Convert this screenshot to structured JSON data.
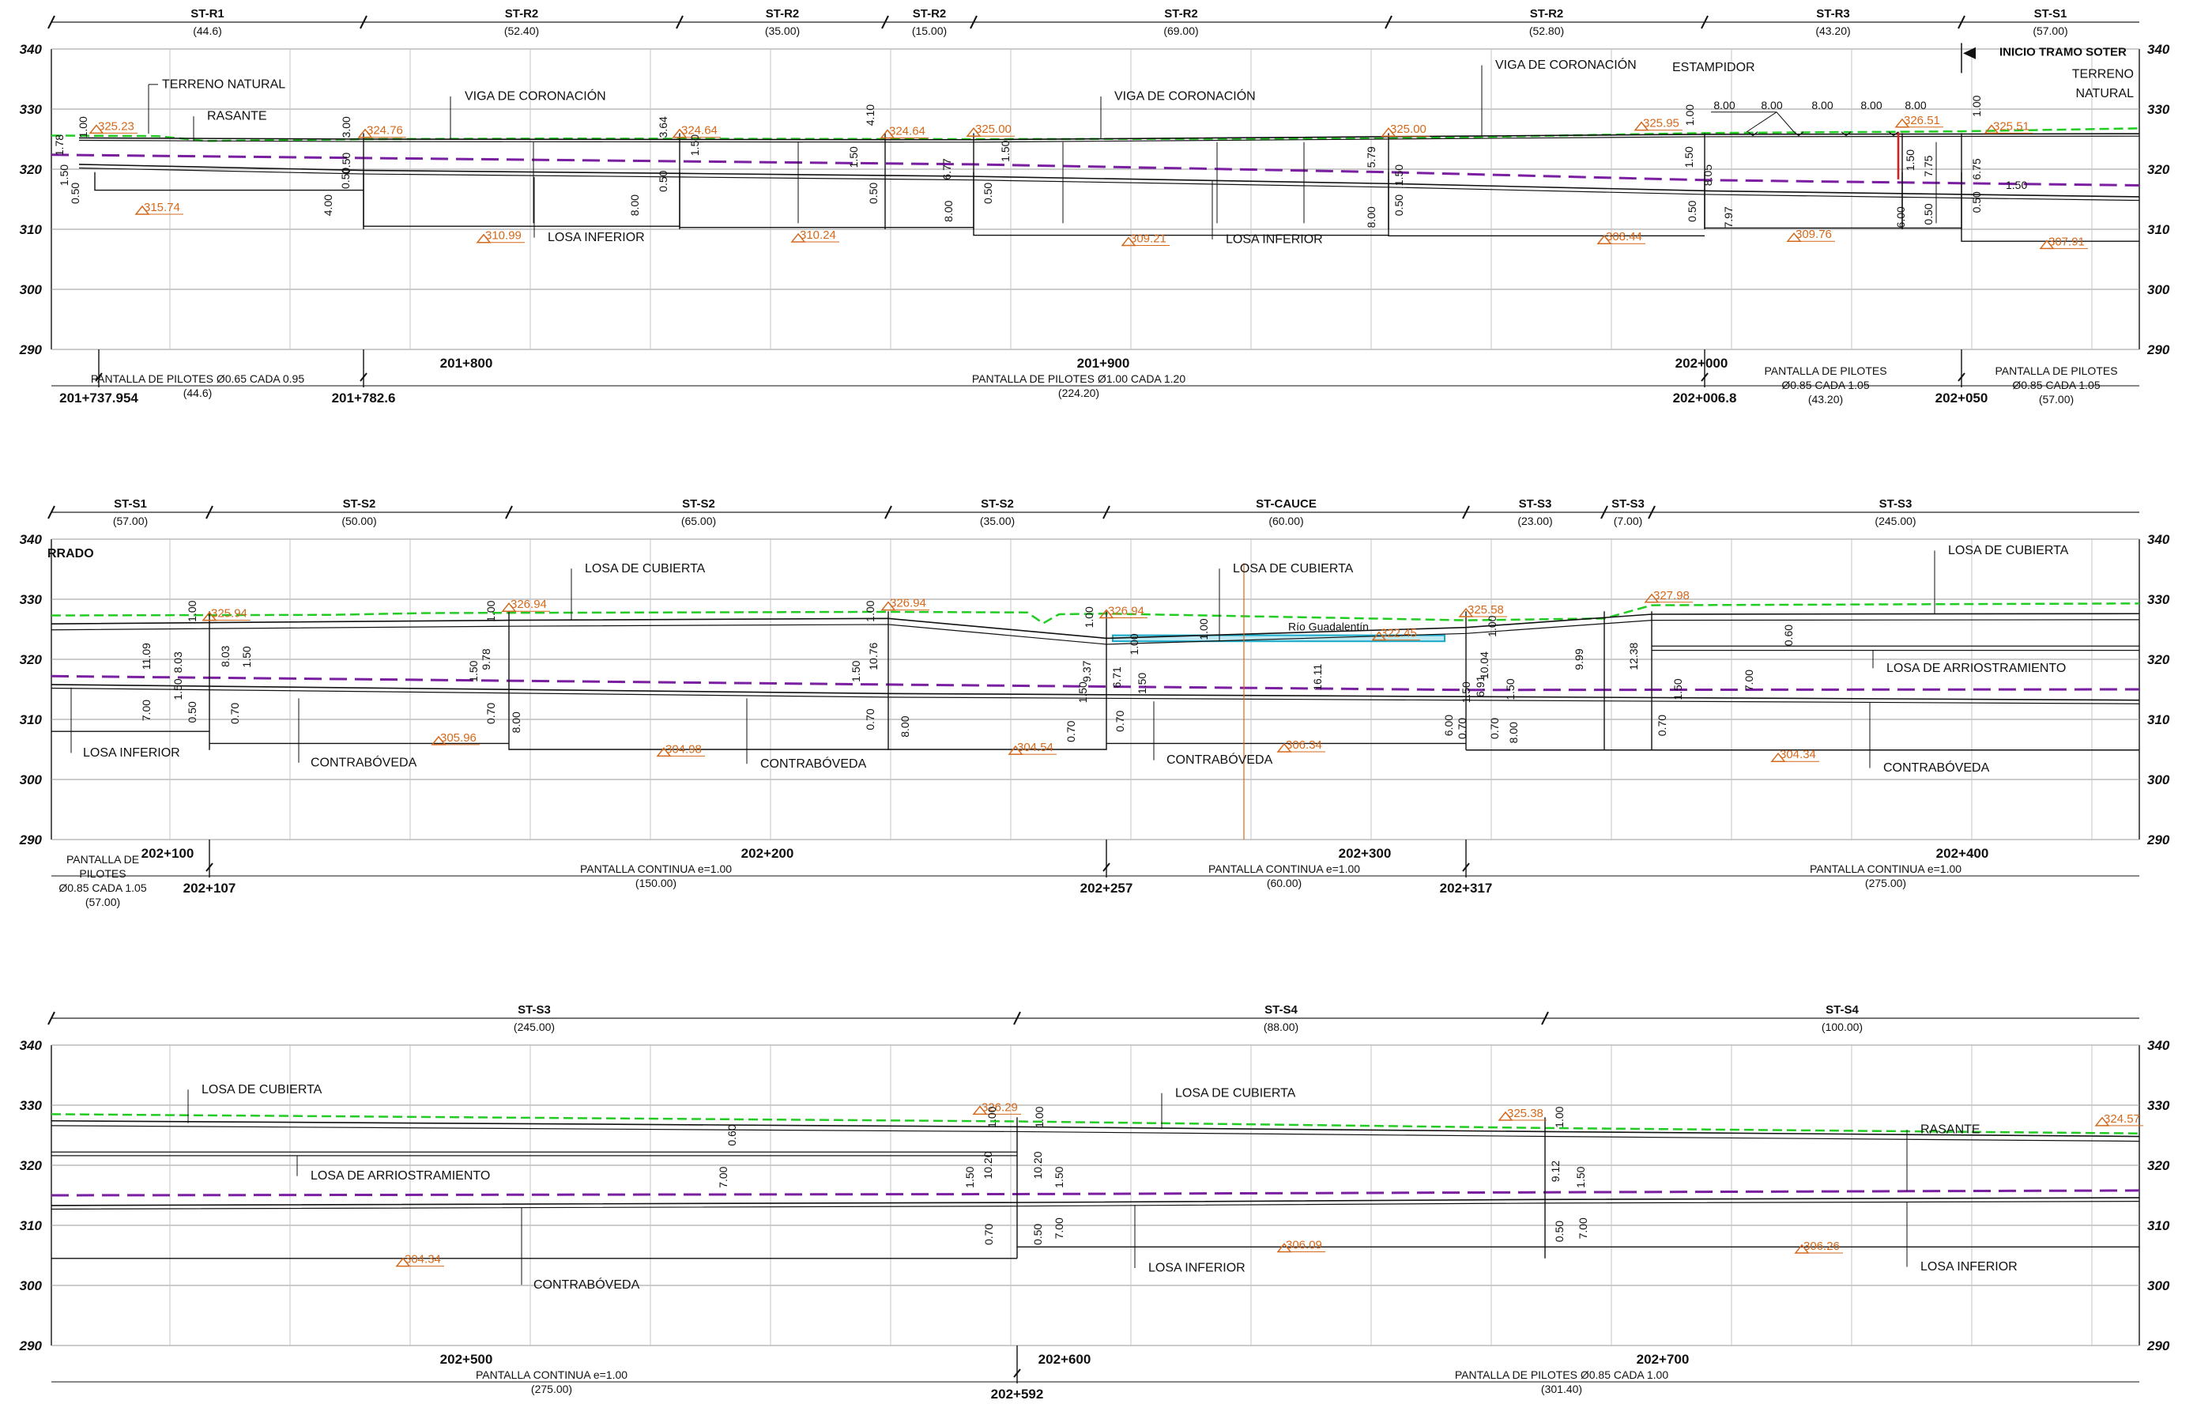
{
  "colors": {
    "terrain": "#22cc22",
    "rasante": "#7b1fa2",
    "structure": "#111111",
    "grid": "#9a9a9a",
    "elev_annot": "#d4691c",
    "water": "#17a9c7",
    "red_mark": "#d81b1b"
  },
  "y_ticks": [
    "340",
    "330",
    "320",
    "310",
    "300",
    "290"
  ],
  "strips": [
    {
      "sections": [
        {
          "name": "ST-R1",
          "length": "(44.6)"
        },
        {
          "name": "ST-R2",
          "length": "(52.40)"
        },
        {
          "name": "ST-R2",
          "length": "(35.00)"
        },
        {
          "name": "ST-R2",
          "length": "(15.00)"
        },
        {
          "name": "ST-R2",
          "length": "(69.00)"
        },
        {
          "name": "ST-R2",
          "length": "(52.80)"
        },
        {
          "name": "ST-R3",
          "length": "(43.20)"
        },
        {
          "name": "ST-S1",
          "length": "(57.00)"
        }
      ],
      "chainages": [
        {
          "label": "201+800",
          "major": false
        },
        {
          "label": "201+900",
          "major": false
        },
        {
          "label": "202+000",
          "major": false
        },
        {
          "label": "201+737.954",
          "major": true
        },
        {
          "label": "201+782.6",
          "major": true
        },
        {
          "label": "202+006.8",
          "major": true
        },
        {
          "label": "202+050",
          "major": true
        }
      ],
      "piles": [
        {
          "text": "PANTALLA DE PILOTES Ø0.65 CADA 0.95",
          "sub": "(44.6)"
        },
        {
          "text": "PANTALLA DE PILOTES Ø1.00 CADA 1.20",
          "sub": "(224.20)"
        },
        {
          "text": "PANTALLA DE PILOTES",
          "text2": "Ø0.85 CADA 1.05",
          "sub": "(43.20)"
        },
        {
          "text": "PANTALLA DE PILOTES",
          "text2": "Ø0.85 CADA 1.05",
          "sub": "(57.00)"
        }
      ],
      "labels": [
        "TERRENO NATURAL",
        "RASANTE",
        "VIGA DE CORONACIÓN",
        "VIGA DE CORONACIÓN",
        "VIGA DE CORONACIÓN",
        "ESTAMPIDOR",
        "LOSA INFERIOR",
        "LOSA INFERIOR",
        "INICIO TRAMO SOTER",
        "TERRENO",
        "NATURAL"
      ],
      "elevations": [
        "325.23",
        "324.76",
        "324.64",
        "324.64",
        "325.00",
        "325.00",
        "325.95",
        "326.51",
        "325.51",
        "315.74",
        "310.99",
        "310.24",
        "309.21",
        "308.44",
        "309.76",
        "307.91"
      ],
      "dims": [
        "1.78",
        "1.00",
        "1.50",
        "0.50",
        "3.00",
        "0.50",
        "4.00",
        "0.50",
        "3.64",
        "1.50",
        "8.00",
        "0.50",
        "4.10",
        "1.50",
        "0.50",
        "6.77",
        "8.00",
        "1.50",
        "0.50",
        "5.79",
        "1.50",
        "8.00",
        "0.50",
        "1.00",
        "8.05",
        "1.50",
        "0.50",
        "7.97",
        "8.00",
        "8.00",
        "8.00",
        "8.00",
        "8.00",
        "1.50",
        "7.75",
        "6.00",
        "0.50",
        "1.00",
        "6.75",
        "1.50",
        "0.50"
      ]
    },
    {
      "sections": [
        {
          "name": "ST-S1",
          "length": "(57.00)"
        },
        {
          "name": "ST-S2",
          "length": "(50.00)"
        },
        {
          "name": "ST-S2",
          "length": "(65.00)"
        },
        {
          "name": "ST-S2",
          "length": "(35.00)"
        },
        {
          "name": "ST-CAUCE",
          "length": "(60.00)"
        },
        {
          "name": "ST-S3",
          "length": "(23.00)"
        },
        {
          "name": "ST-S3",
          "length": "(7.00)"
        },
        {
          "name": "ST-S3",
          "length": "(245.00)"
        }
      ],
      "chainages": [
        {
          "label": "202+100",
          "major": false
        },
        {
          "label": "202+200",
          "major": false
        },
        {
          "label": "202+300",
          "major": false
        },
        {
          "label": "202+400",
          "major": false
        },
        {
          "label": "202+107",
          "major": true
        },
        {
          "label": "202+257",
          "major": true
        },
        {
          "label": "202+317",
          "major": true
        }
      ],
      "piles": [
        {
          "text": "PANTALLA DE",
          "text2": "PILOTES",
          "text3": "Ø0.85 CADA 1.05",
          "sub": "(57.00)"
        },
        {
          "text": "PANTALLA CONTINUA e=1.00",
          "sub": "(150.00)"
        },
        {
          "text": "PANTALLA CONTINUA e=1.00",
          "sub": "(60.00)"
        },
        {
          "text": "PANTALLA CONTINUA e=1.00",
          "sub": "(275.00)"
        }
      ],
      "labels": [
        "RRADO",
        "LOSA DE CUBIERTA",
        "LOSA DE CUBIERTA",
        "LOSA DE CUBIERTA",
        "LOSA INFERIOR",
        "CONTRABÓVEDA",
        "CONTRABÓVEDA",
        "CONTRABÓVEDA",
        "CONTRABÓVEDA",
        "LOSA DE ARRIOSTRAMIENTO",
        "Río Guadalentín"
      ],
      "elevations": [
        "325.94",
        "326.94",
        "326.94",
        "326.94",
        "322.45",
        "325.58",
        "327.98",
        "305.96",
        "304.98",
        "304.54",
        "306.34",
        "304.34"
      ],
      "dims": [
        "1.00",
        "11.09",
        "8.03",
        "8.03",
        "1.50",
        "1.50",
        "7.00",
        "0.50",
        "0.70",
        "1.00",
        "9.78",
        "1.50",
        "0.70",
        "8.00",
        "1.00",
        "10.76",
        "1.50",
        "0.70",
        "8.00",
        "1.00",
        "9.37",
        "1.50",
        "0.70",
        "1.00",
        "6.71",
        "1.50",
        "0.70",
        "1.00",
        "16.11",
        "1.00",
        "6.91",
        "1.50",
        "6.00",
        "0.70",
        "10.04",
        "1.50",
        "0.70",
        "8.00",
        "9.99",
        "12.38",
        "1.50",
        "0.70",
        "7.00",
        "0.60"
      ]
    },
    {
      "sections": [
        {
          "name": "ST-S3",
          "length": "(245.00)"
        },
        {
          "name": "ST-S4",
          "length": "(88.00)"
        },
        {
          "name": "ST-S4",
          "length": "(100.00)"
        }
      ],
      "chainages": [
        {
          "label": "202+500",
          "major": false
        },
        {
          "label": "202+600",
          "major": false
        },
        {
          "label": "202+700",
          "major": false
        },
        {
          "label": "202+592",
          "major": true
        }
      ],
      "piles": [
        {
          "text": "PANTALLA CONTINUA e=1.00",
          "sub": "(275.00)"
        },
        {
          "text": "PANTALLA DE PILOTES Ø0.85 CADA 1.00",
          "sub": "(301.40)"
        }
      ],
      "labels": [
        "LOSA DE CUBIERTA",
        "LOSA DE ARRIOSTRAMIENTO",
        "CONTRABÓVEDA",
        "LOSA DE CUBIERTA",
        "LOSA INFERIOR",
        "RASANTE",
        "LOSA INFERIOR"
      ],
      "elevations": [
        "326.29",
        "325.38",
        "324.57",
        "304.34",
        "306.09",
        "306.26"
      ],
      "dims": [
        "0.60",
        "7.00",
        "1.00",
        "10.20",
        "1.50",
        "0.70",
        "1.00",
        "10.20",
        "1.50",
        "0.50",
        "7.00",
        "1.00",
        "9.12",
        "1.50",
        "0.50",
        "7.00"
      ]
    }
  ]
}
